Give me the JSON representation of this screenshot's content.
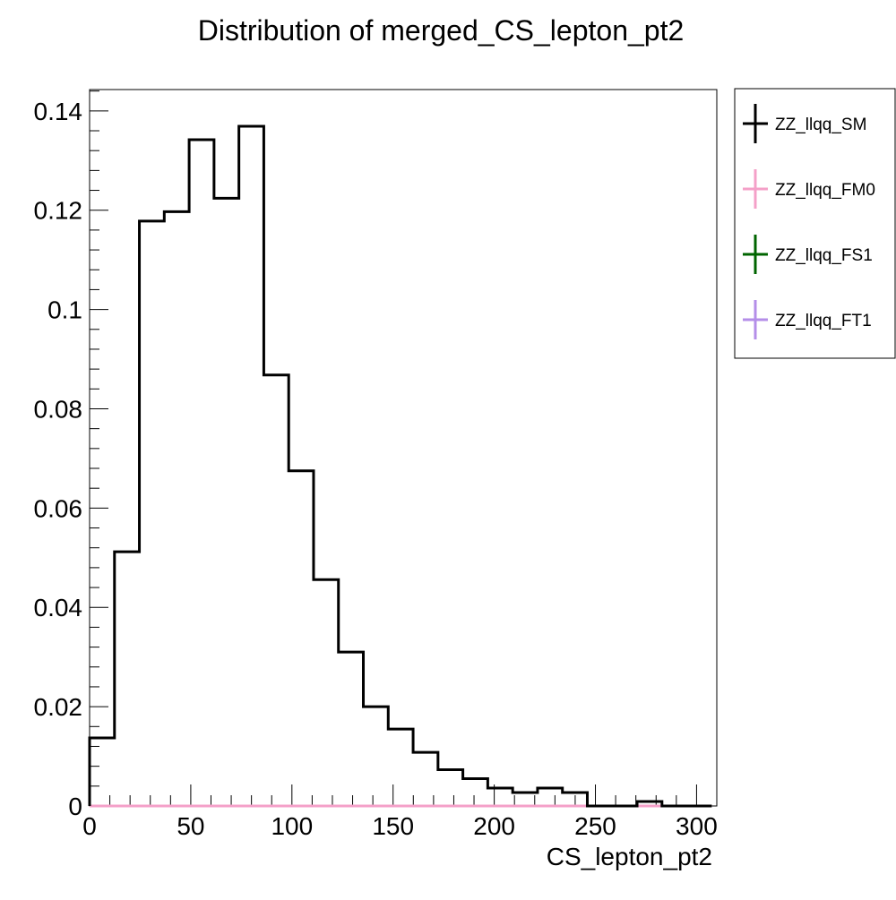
{
  "chart_data": {
    "type": "histogram",
    "title": "Distribution of merged_CS_lepton_pt2",
    "xlabel": "CS_lepton_pt2",
    "ylabel": "",
    "xlim": [
      0,
      310
    ],
    "ylim": [
      0,
      0.1443
    ],
    "x_ticks": [
      0,
      50,
      100,
      150,
      200,
      250,
      300
    ],
    "x_tick_labels": [
      "0",
      "50",
      "100",
      "150",
      "200",
      "250",
      "300"
    ],
    "y_ticks": [
      0,
      0.02,
      0.04,
      0.06,
      0.08,
      0.1,
      0.12,
      0.14
    ],
    "y_tick_labels": [
      "0",
      "0.02",
      "0.04",
      "0.06",
      "0.08",
      "0.1",
      "0.12",
      "0.14"
    ],
    "bin_edges": [
      0,
      12.3,
      24.6,
      36.9,
      49.2,
      61.5,
      73.8,
      86.1,
      98.4,
      110.7,
      123.0,
      135.3,
      147.6,
      159.9,
      172.2,
      184.5,
      196.8,
      209.1,
      221.4,
      233.7,
      246.0,
      258.3,
      270.6,
      282.9,
      295.2,
      307.5
    ],
    "legend_position": "right",
    "series": [
      {
        "name": "ZZ_llqq_SM",
        "color": "#000000",
        "values": [
          0.0137,
          0.0512,
          0.1178,
          0.1197,
          0.1342,
          0.1224,
          0.1369,
          0.0868,
          0.0675,
          0.0456,
          0.031,
          0.02,
          0.0155,
          0.0108,
          0.0073,
          0.0055,
          0.0036,
          0.0027,
          0.0036,
          0.0027,
          0.0,
          0.0,
          0.0009,
          0.0,
          0.0
        ]
      },
      {
        "name": "ZZ_llqq_FM0",
        "color": "#f4a0c8",
        "values": [
          0,
          0,
          0,
          0,
          0,
          0,
          0,
          0,
          0,
          0,
          0,
          0,
          0,
          0,
          0,
          0,
          0,
          0,
          0,
          0,
          0,
          0,
          0,
          0,
          0
        ]
      },
      {
        "name": "ZZ_llqq_FS1",
        "color": "#006400",
        "values": [
          0,
          0,
          0,
          0,
          0,
          0,
          0,
          0,
          0,
          0,
          0,
          0,
          0,
          0,
          0,
          0,
          0,
          0,
          0,
          0,
          0,
          0,
          0,
          0,
          0
        ]
      },
      {
        "name": "ZZ_llqq_FT1",
        "color": "#b48ee8",
        "values": [
          0,
          0,
          0,
          0,
          0,
          0,
          0,
          0,
          0,
          0,
          0,
          0,
          0,
          0,
          0,
          0,
          0,
          0,
          0,
          0,
          0,
          0,
          0,
          0,
          0
        ]
      }
    ]
  }
}
